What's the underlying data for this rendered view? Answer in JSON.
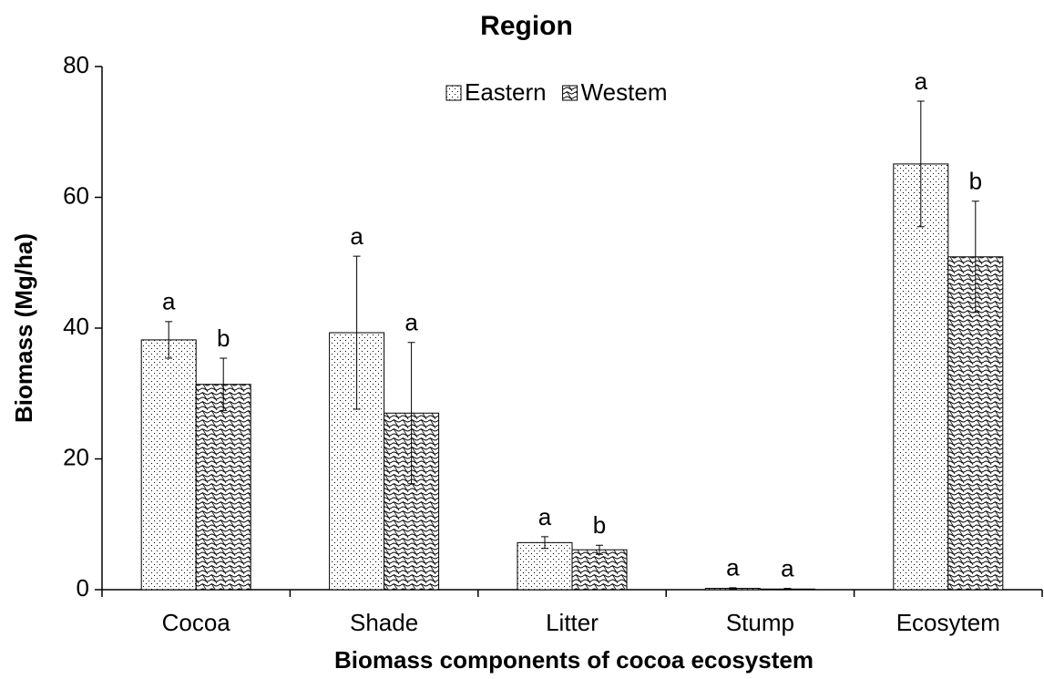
{
  "chart_data": {
    "type": "bar",
    "title": "Region",
    "x_label": "Biomass components of cocoa ecosystem",
    "y_label": "Biomass (Mg/ha)",
    "categories": [
      "Cocoa",
      "Shade",
      "Litter",
      "Stump",
      "Ecosytem"
    ],
    "series": [
      {
        "name": "Eastern",
        "color": "#000000",
        "pattern": "dots",
        "values": [
          38.2,
          39.3,
          7.2,
          0.2,
          65.1
        ],
        "errors": [
          2.8,
          11.7,
          0.9,
          0.1,
          9.6
        ],
        "letters": [
          "a",
          "a",
          "a",
          "a",
          "a"
        ]
      },
      {
        "name": "Westem",
        "color": "#000000",
        "pattern": "waves",
        "values": [
          31.4,
          27.0,
          6.1,
          0.1,
          50.9
        ],
        "errors": [
          4.0,
          10.8,
          0.7,
          0.1,
          8.5
        ],
        "letters": [
          "b",
          "a",
          "b",
          "a",
          "b"
        ]
      }
    ],
    "ylim": [
      0,
      80
    ],
    "yticks": [
      0,
      20,
      40,
      60,
      80
    ],
    "grid": false,
    "legend": "top"
  }
}
